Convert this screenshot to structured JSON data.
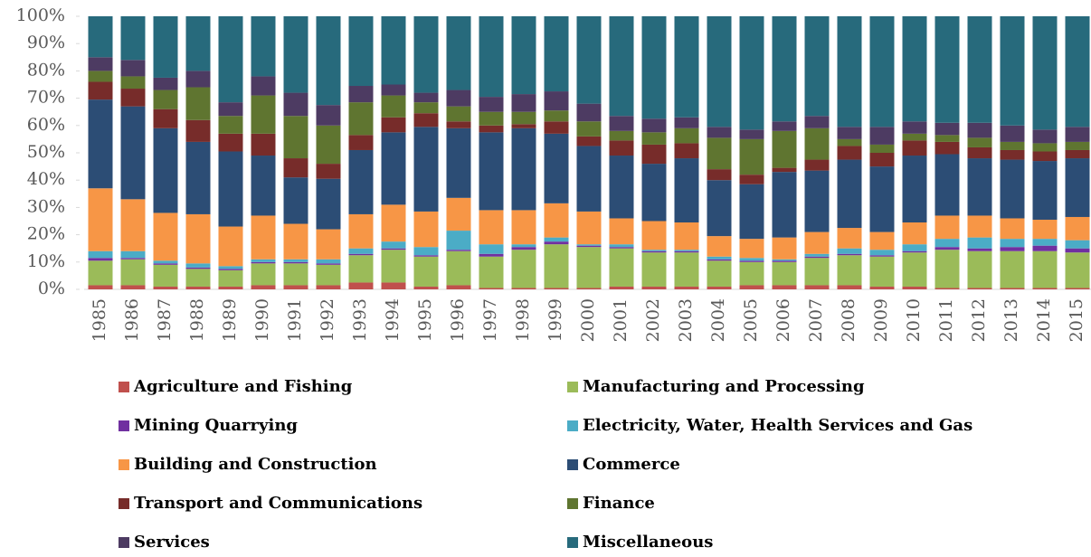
{
  "chart_data": {
    "type": "stacked-bar-100",
    "categories": [
      "1985",
      "1986",
      "1987",
      "1988",
      "1989",
      "1990",
      "1991",
      "1992",
      "1993",
      "1994",
      "1995",
      "1996",
      "1997",
      "1998",
      "1999",
      "2000",
      "2001",
      "2002",
      "2003",
      "2004",
      "2005",
      "2006",
      "2007",
      "2008",
      "2009",
      "2010",
      "2011",
      "2012",
      "2013",
      "2014",
      "2015"
    ],
    "ylim": [
      0,
      100
    ],
    "yticks": [
      {
        "value": 0,
        "label": "0%"
      },
      {
        "value": 10,
        "label": "10%"
      },
      {
        "value": 20,
        "label": "20%"
      },
      {
        "value": 30,
        "label": "30%"
      },
      {
        "value": 40,
        "label": "40%"
      },
      {
        "value": 50,
        "label": "50%"
      },
      {
        "value": 60,
        "label": "60%"
      },
      {
        "value": 70,
        "label": "70%"
      },
      {
        "value": 80,
        "label": "80%"
      },
      {
        "value": 90,
        "label": "90%"
      },
      {
        "value": 100,
        "label": "100%"
      }
    ],
    "series": [
      {
        "name": "Agriculture and Fishing",
        "color": "#c0504d",
        "values": [
          1.5,
          1.5,
          1,
          1,
          1,
          1.5,
          1.5,
          1.5,
          2.5,
          2.5,
          1,
          1.5,
          0.5,
          0.5,
          0.5,
          0.5,
          1,
          1,
          1,
          1,
          1.5,
          1.5,
          1.5,
          1.5,
          1,
          1,
          0.5,
          0.5,
          0.5,
          0.5,
          0.5
        ]
      },
      {
        "name": "Manufacturing and Processing",
        "color": "#9bbb59",
        "values": [
          9,
          9.5,
          8,
          6.5,
          6,
          8,
          8,
          7.5,
          10,
          12,
          11,
          12.5,
          11.5,
          14,
          16,
          15,
          14,
          12.5,
          12.5,
          9.5,
          8.5,
          8.5,
          10,
          11,
          11,
          12.5,
          14,
          13.5,
          13.5,
          13.5,
          13
        ]
      },
      {
        "name": "Mining Quarrying",
        "color": "#7030a0",
        "values": [
          1,
          0.5,
          0.5,
          0.5,
          0.5,
          0.5,
          0.5,
          0.5,
          0.5,
          0.5,
          0.5,
          0.5,
          1,
          1,
          1,
          0.5,
          0.5,
          0.5,
          0.5,
          0.5,
          0.5,
          0.5,
          0.5,
          0.5,
          0.5,
          0.5,
          1,
          1,
          1.5,
          2,
          1.5
        ]
      },
      {
        "name": "Electricity, Water, Health Services and Gas",
        "color": "#4bacc6",
        "values": [
          2.5,
          2.5,
          1,
          1.5,
          1,
          1,
          1,
          1.5,
          2,
          2.5,
          3,
          7,
          3.5,
          1,
          1.5,
          0.5,
          1,
          0.5,
          0.5,
          1,
          1,
          0.5,
          1,
          2,
          2,
          2.5,
          3,
          4,
          3,
          2.5,
          3
        ]
      },
      {
        "name": "Building and Construction",
        "color": "#f79646",
        "values": [
          23,
          19,
          17.5,
          18,
          14.5,
          16,
          13,
          11,
          12.5,
          13.5,
          13,
          12,
          12.5,
          12.5,
          12.5,
          12,
          9.5,
          10.5,
          10,
          7.5,
          7,
          8,
          8,
          7.5,
          6.5,
          8,
          8.5,
          8,
          7.5,
          7,
          8.5
        ]
      },
      {
        "name": "Commerce",
        "color": "#2c4d75",
        "values": [
          32.5,
          34,
          31,
          26.5,
          27.5,
          22,
          17,
          18.5,
          23.5,
          26.5,
          31,
          25.5,
          28.5,
          30,
          25.5,
          24,
          23,
          21,
          23.5,
          20.5,
          20,
          24,
          22.5,
          25,
          24,
          24.5,
          22.5,
          21,
          21.5,
          21.5,
          21.5
        ]
      },
      {
        "name": "Transport and Communications",
        "color": "#772c2a",
        "values": [
          6.5,
          6.5,
          7,
          8,
          6.5,
          8,
          7,
          5.5,
          5.5,
          5.5,
          5,
          2.5,
          2.5,
          1.5,
          4.5,
          3.5,
          5.5,
          7,
          5.5,
          4,
          3.5,
          1.5,
          4,
          5,
          5,
          5.5,
          4.5,
          4,
          3.5,
          3.5,
          3
        ]
      },
      {
        "name": "Finance",
        "color": "#5f7530",
        "values": [
          4,
          4.5,
          7,
          12,
          6.5,
          14,
          15.5,
          14,
          12,
          8,
          4,
          5.5,
          5,
          4.5,
          4,
          5.5,
          3.5,
          4.5,
          5.5,
          11.5,
          13,
          13.5,
          11.5,
          2.5,
          3,
          2.5,
          2.5,
          3.5,
          3,
          3,
          3
        ]
      },
      {
        "name": "Services",
        "color": "#4d3b62",
        "values": [
          5,
          6,
          4.5,
          6,
          5,
          7,
          8.5,
          7.5,
          6,
          4,
          3.5,
          6,
          5.5,
          6.5,
          7,
          6.5,
          5.5,
          5,
          4,
          4,
          3.5,
          3.5,
          4.5,
          4.5,
          6.5,
          4.5,
          4.5,
          5.5,
          6,
          5,
          5.5
        ]
      },
      {
        "name": "Miscellaneous",
        "color": "#276a7c",
        "values": [
          15,
          16,
          22.5,
          20,
          31.5,
          22,
          28,
          32.5,
          25.5,
          25,
          28,
          27,
          29.5,
          28.5,
          27.5,
          32,
          36.5,
          37.5,
          37,
          40.5,
          41.5,
          38.5,
          36.5,
          40.5,
          40.5,
          38.5,
          39,
          39,
          40,
          41.5,
          40.5
        ]
      }
    ]
  }
}
